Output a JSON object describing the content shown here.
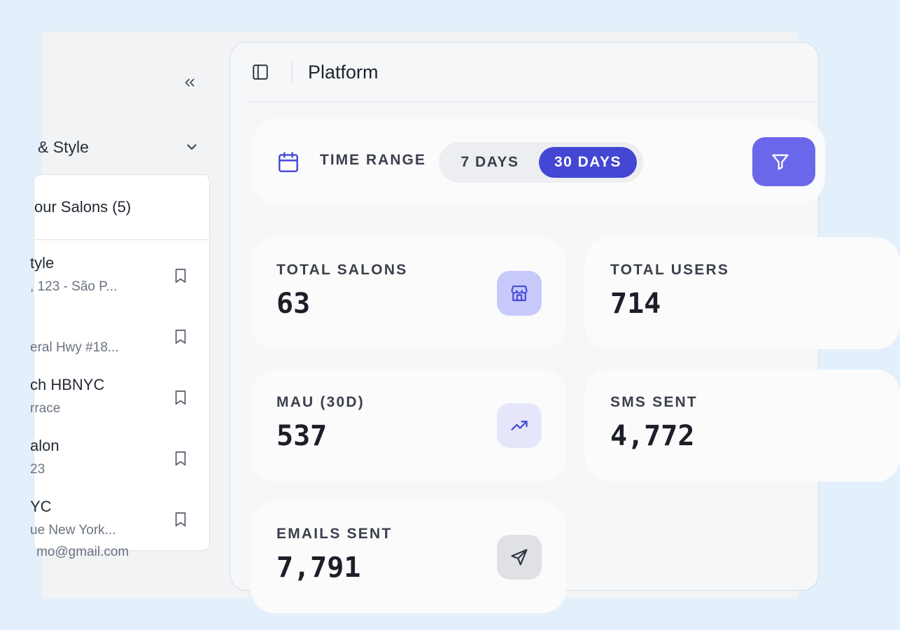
{
  "sidebar": {
    "org_name": "& Style",
    "dropdown_title": "our Salons (5)",
    "salons": [
      {
        "name": "tyle",
        "address": ", 123 - São P..."
      },
      {
        "name": "",
        "address": "eral Hwy #18..."
      },
      {
        "name": "ch HBNYC",
        "address": "rrace"
      },
      {
        "name": "alon",
        "address": "23"
      },
      {
        "name": "YC",
        "address": "ue New York..."
      }
    ],
    "user_email": "mo@gmail.com"
  },
  "header": {
    "title": "Platform"
  },
  "time_range": {
    "label": "TIME RANGE",
    "options": [
      "7 DAYS",
      "30 DAYS"
    ],
    "selected": "30 DAYS"
  },
  "stats": {
    "total_salons": {
      "label": "TOTAL SALONS",
      "value": "63",
      "icon": "store-icon"
    },
    "total_users": {
      "label": "TOTAL USERS",
      "value": "714"
    },
    "mau": {
      "label": "MAU (30D)",
      "value": "537",
      "icon": "trending-up-icon"
    },
    "sms_sent": {
      "label": "SMS SENT",
      "value": "4,772"
    },
    "emails_sent": {
      "label": "EMAILS SENT",
      "value": "7,791",
      "icon": "send-icon"
    }
  },
  "colors": {
    "accent": "#4447d3",
    "filter_button": "#6a67ea",
    "salons_icon_bg": "#c7c9fb",
    "mau_icon_bg": "#e6e6fb",
    "emails_icon_bg": "#dfe1e4"
  }
}
